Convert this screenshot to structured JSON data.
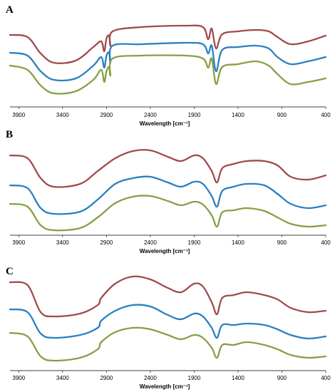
{
  "colors": {
    "red": "#a24a4d",
    "blue": "#2b80c0",
    "green": "#86a046"
  },
  "chart_data": [
    {
      "type": "line",
      "panel_label": "A",
      "xlabel": "Wavelength [cm⁻¹]",
      "ylabel": "",
      "x_reversed": true,
      "xlim": [
        4000,
        400
      ],
      "x_ticks": [
        "3900",
        "3400",
        "2900",
        "2400",
        "1900",
        "1400",
        "900",
        "400"
      ],
      "y_ticks": [],
      "grid": false,
      "series": [
        {
          "color": "red",
          "offset": 0,
          "points": [
            [
              4000,
              49
            ],
            [
              3800,
              52
            ],
            [
              3650,
              75
            ],
            [
              3500,
              88
            ],
            [
              3250,
              85
            ],
            [
              3050,
              66
            ],
            [
              2960,
              58
            ],
            [
              2925,
              72
            ],
            [
              2900,
              54
            ],
            [
              2870,
              50
            ],
            [
              2855,
              64
            ],
            [
              2830,
              44
            ],
            [
              2500,
              38
            ],
            [
              2000,
              36
            ],
            [
              1800,
              38
            ],
            [
              1740,
              55
            ],
            [
              1700,
              40
            ],
            [
              1650,
              68
            ],
            [
              1580,
              48
            ],
            [
              1400,
              44
            ],
            [
              1200,
              42
            ],
            [
              1050,
              44
            ],
            [
              950,
              52
            ],
            [
              800,
              62
            ],
            [
              600,
              58
            ],
            [
              400,
              50
            ]
          ]
        },
        {
          "color": "blue",
          "offset": 0,
          "points": [
            [
              4000,
              74
            ],
            [
              3800,
              78
            ],
            [
              3650,
              100
            ],
            [
              3500,
              112
            ],
            [
              3250,
              110
            ],
            [
              3050,
              92
            ],
            [
              2960,
              80
            ],
            [
              2925,
              95
            ],
            [
              2900,
              78
            ],
            [
              2870,
              74
            ],
            [
              2855,
              88
            ],
            [
              2830,
              64
            ],
            [
              2500,
              62
            ],
            [
              2000,
              60
            ],
            [
              1800,
              62
            ],
            [
              1740,
              75
            ],
            [
              1700,
              64
            ],
            [
              1650,
              100
            ],
            [
              1580,
              70
            ],
            [
              1400,
              66
            ],
            [
              1200,
              64
            ],
            [
              1050,
              68
            ],
            [
              950,
              80
            ],
            [
              800,
              90
            ],
            [
              600,
              86
            ],
            [
              400,
              80
            ]
          ]
        },
        {
          "color": "green",
          "offset": 0,
          "points": [
            [
              4000,
              92
            ],
            [
              3800,
              98
            ],
            [
              3650,
              120
            ],
            [
              3500,
              131
            ],
            [
              3250,
              128
            ],
            [
              3050,
              112
            ],
            [
              2960,
              98
            ],
            [
              2925,
              115
            ],
            [
              2900,
              100
            ],
            [
              2870,
              94
            ],
            [
              2855,
              106
            ],
            [
              2830,
              82
            ],
            [
              2500,
              78
            ],
            [
              2000,
              78
            ],
            [
              1800,
              82
            ],
            [
              1740,
              95
            ],
            [
              1700,
              82
            ],
            [
              1650,
              118
            ],
            [
              1580,
              94
            ],
            [
              1400,
              90
            ],
            [
              1200,
              86
            ],
            [
              1050,
              92
            ],
            [
              950,
              104
            ],
            [
              800,
              118
            ],
            [
              600,
              115
            ],
            [
              400,
              110
            ]
          ]
        }
      ]
    },
    {
      "type": "line",
      "panel_label": "B",
      "xlabel": "Wavelength [cm⁻¹]",
      "ylabel": "",
      "x_reversed": true,
      "xlim": [
        4000,
        400
      ],
      "x_ticks": [
        "3900",
        "3400",
        "2900",
        "2400",
        "1900",
        "1400",
        "900",
        "400"
      ],
      "y_ticks": [],
      "grid": false,
      "series": [
        {
          "color": "red",
          "points": [
            [
              4000,
              218
            ],
            [
              3800,
              222
            ],
            [
              3650,
              250
            ],
            [
              3500,
              262
            ],
            [
              3200,
              258
            ],
            [
              3000,
              240
            ],
            [
              2800,
              222
            ],
            [
              2600,
              212
            ],
            [
              2400,
              211
            ],
            [
              2200,
              220
            ],
            [
              2050,
              226
            ],
            [
              1900,
              218
            ],
            [
              1800,
              222
            ],
            [
              1700,
              240
            ],
            [
              1640,
              256
            ],
            [
              1580,
              236
            ],
            [
              1450,
              230
            ],
            [
              1300,
              226
            ],
            [
              1100,
              226
            ],
            [
              950,
              232
            ],
            [
              800,
              248
            ],
            [
              600,
              252
            ],
            [
              400,
              246
            ]
          ]
        },
        {
          "color": "blue",
          "points": [
            [
              4000,
              260
            ],
            [
              3800,
              264
            ],
            [
              3650,
              292
            ],
            [
              3500,
              300
            ],
            [
              3200,
              297
            ],
            [
              3000,
              280
            ],
            [
              2800,
              258
            ],
            [
              2600,
              250
            ],
            [
              2400,
              248
            ],
            [
              2200,
              256
            ],
            [
              2050,
              262
            ],
            [
              1900,
              255
            ],
            [
              1800,
              258
            ],
            [
              1700,
              275
            ],
            [
              1640,
              290
            ],
            [
              1580,
              268
            ],
            [
              1450,
              262
            ],
            [
              1300,
              258
            ],
            [
              1100,
              260
            ],
            [
              950,
              272
            ],
            [
              800,
              286
            ],
            [
              600,
              292
            ],
            [
              400,
              288
            ]
          ]
        },
        {
          "color": "green",
          "points": [
            [
              4000,
              286
            ],
            [
              3800,
              290
            ],
            [
              3650,
              316
            ],
            [
              3500,
              323
            ],
            [
              3200,
              320
            ],
            [
              3000,
              305
            ],
            [
              2800,
              285
            ],
            [
              2600,
              276
            ],
            [
              2400,
              275
            ],
            [
              2200,
              282
            ],
            [
              2050,
              288
            ],
            [
              1900,
              283
            ],
            [
              1800,
              287
            ],
            [
              1700,
              302
            ],
            [
              1640,
              318
            ],
            [
              1580,
              298
            ],
            [
              1450,
              295
            ],
            [
              1300,
              292
            ],
            [
              1100,
              296
            ],
            [
              950,
              305
            ],
            [
              800,
              314
            ],
            [
              600,
              318
            ],
            [
              400,
              316
            ]
          ]
        }
      ]
    },
    {
      "type": "line",
      "panel_label": "C",
      "xlabel": "Wavelength [cm⁻¹]",
      "ylabel": "",
      "x_reversed": true,
      "xlim": [
        4000,
        400
      ],
      "x_ticks": [
        "3900",
        "3400",
        "2900",
        "2400",
        "1900",
        "1400",
        "900",
        "400"
      ],
      "y_ticks": [],
      "grid": false,
      "series": [
        {
          "color": "red",
          "points": [
            [
              4000,
              396
            ],
            [
              3800,
              400
            ],
            [
              3650,
              438
            ],
            [
              3500,
              444
            ],
            [
              3200,
              440
            ],
            [
              3000,
              428
            ],
            [
              2960,
              418
            ],
            [
              2800,
              398
            ],
            [
              2600,
              388
            ],
            [
              2400,
              392
            ],
            [
              2200,
              404
            ],
            [
              2050,
              410
            ],
            [
              1900,
              398
            ],
            [
              1800,
              402
            ],
            [
              1700,
              424
            ],
            [
              1640,
              441
            ],
            [
              1580,
              418
            ],
            [
              1450,
              414
            ],
            [
              1300,
              410
            ],
            [
              1100,
              414
            ],
            [
              950,
              420
            ],
            [
              800,
              432
            ],
            [
              600,
              438
            ],
            [
              400,
              436
            ]
          ]
        },
        {
          "color": "blue",
          "points": [
            [
              4000,
              434
            ],
            [
              3800,
              438
            ],
            [
              3650,
              468
            ],
            [
              3500,
              474
            ],
            [
              3200,
              470
            ],
            [
              3000,
              460
            ],
            [
              2960,
              450
            ],
            [
              2800,
              436
            ],
            [
              2600,
              428
            ],
            [
              2400,
              430
            ],
            [
              2200,
              442
            ],
            [
              2050,
              448
            ],
            [
              1900,
              440
            ],
            [
              1800,
              444
            ],
            [
              1700,
              460
            ],
            [
              1640,
              474
            ],
            [
              1580,
              456
            ],
            [
              1450,
              456
            ],
            [
              1300,
              454
            ],
            [
              1100,
              456
            ],
            [
              950,
              462
            ],
            [
              800,
              470
            ],
            [
              600,
              475
            ],
            [
              400,
              472
            ]
          ]
        },
        {
          "color": "green",
          "points": [
            [
              4000,
              467
            ],
            [
              3800,
              472
            ],
            [
              3650,
              500
            ],
            [
              3500,
              506
            ],
            [
              3200,
              502
            ],
            [
              3000,
              490
            ],
            [
              2960,
              480
            ],
            [
              2800,
              466
            ],
            [
              2600,
              460
            ],
            [
              2400,
              462
            ],
            [
              2200,
              470
            ],
            [
              2050,
              476
            ],
            [
              1900,
              470
            ],
            [
              1800,
              474
            ],
            [
              1700,
              488
            ],
            [
              1640,
              502
            ],
            [
              1580,
              484
            ],
            [
              1450,
              484
            ],
            [
              1300,
              480
            ],
            [
              1100,
              484
            ],
            [
              950,
              490
            ],
            [
              800,
              498
            ],
            [
              600,
              502
            ],
            [
              400,
              500
            ]
          ]
        }
      ]
    }
  ]
}
